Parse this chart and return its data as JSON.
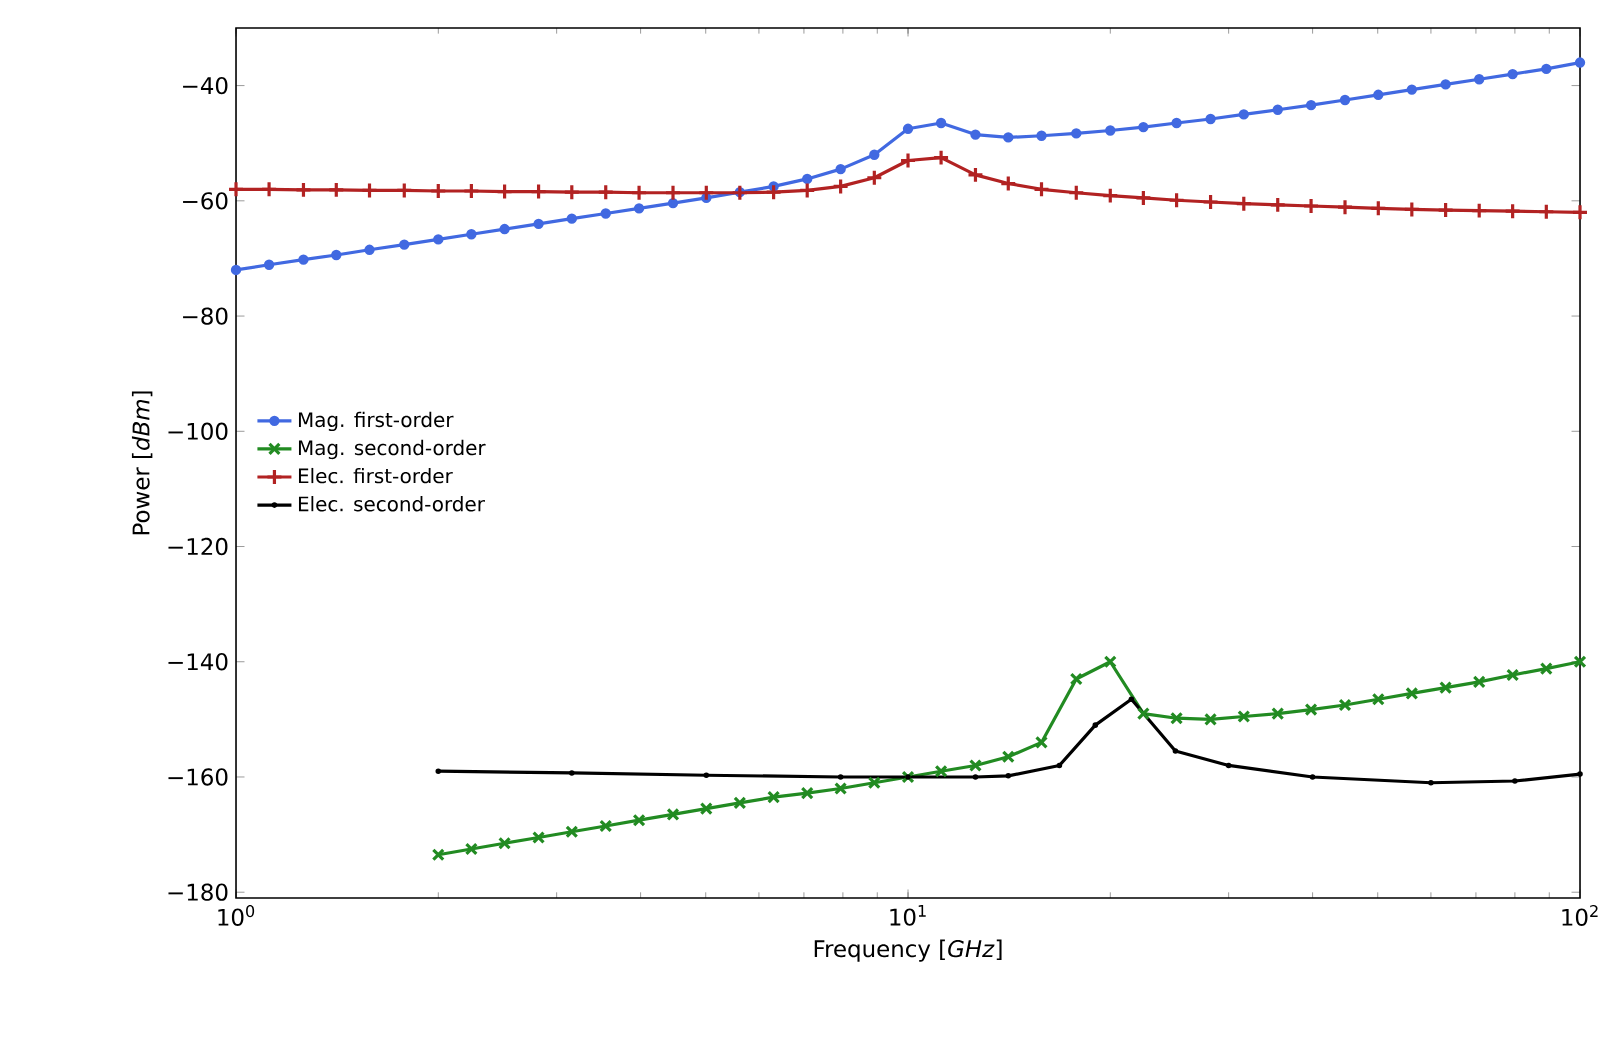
{
  "chart_data": {
    "type": "line",
    "xlabel": "Frequency [*GHz*]",
    "ylabel": "Power [*dBm*]",
    "log": "x",
    "grid": false,
    "legend": "left",
    "xlim": [
      1,
      100
    ],
    "ylim": [
      -181,
      -30
    ],
    "xticks": [
      {
        "value": 1,
        "label": "10$^{0}$"
      },
      {
        "value": 10,
        "label": "10$^{1}$"
      },
      {
        "value": 100,
        "label": "10$^{2}$"
      }
    ],
    "yticks": [
      {
        "value": -180,
        "label": "−180"
      },
      {
        "value": -160,
        "label": "−160"
      },
      {
        "value": -140,
        "label": "−140"
      },
      {
        "value": -120,
        "label": "−120"
      },
      {
        "value": -100,
        "label": "−100"
      },
      {
        "value": -80,
        "label": "−80"
      },
      {
        "value": -60,
        "label": "−60"
      },
      {
        "value": -40,
        "label": "−40"
      }
    ],
    "x": [
      1,
      1.12,
      1.26,
      1.41,
      1.58,
      1.78,
      2,
      2.24,
      2.51,
      2.82,
      3.16,
      3.55,
      3.98,
      4.47,
      5.01,
      5.62,
      6.31,
      7.08,
      7.94,
      8.91,
      10,
      11.2,
      12.6,
      14.1,
      15.8,
      17.8,
      20,
      22.4,
      25.1,
      28.2,
      31.6,
      35.5,
      39.8,
      44.7,
      50.1,
      56.2,
      63.1,
      70.8,
      79.4,
      89.1,
      100
    ],
    "series": [
      {
        "name": "Mag. first-order",
        "color": "#4169e1",
        "marker": "circle",
        "values": [
          -72,
          -71.1,
          -70.2,
          -69.4,
          -68.5,
          -67.6,
          -66.7,
          -65.8,
          -64.9,
          -64,
          -63.1,
          -62.2,
          -61.3,
          -60.4,
          -59.5,
          -58.5,
          -57.5,
          -56.2,
          -54.5,
          -52,
          -47.5,
          -46.5,
          -48.5,
          -49,
          -48.7,
          -48.3,
          -47.8,
          -47.2,
          -46.5,
          -45.8,
          -45,
          -44.2,
          -43.4,
          -42.5,
          -41.6,
          -40.7,
          -39.8,
          -38.9,
          -38,
          -37.1,
          -36
        ]
      },
      {
        "name": "Mag. second-order",
        "color": "#228b22",
        "marker": "cross",
        "x": [
          2,
          2.24,
          2.51,
          2.82,
          3.16,
          3.55,
          3.98,
          4.47,
          5.01,
          5.62,
          6.31,
          7.08,
          7.94,
          8.91,
          10,
          11.2,
          12.6,
          14.1,
          15.8,
          17.8,
          20,
          22.4,
          25.1,
          28.2,
          31.6,
          35.5,
          39.8,
          44.7,
          50.1,
          56.2,
          63.1,
          70.8,
          79.4,
          89.1,
          100
        ],
        "values": [
          -173.5,
          -172.5,
          -171.5,
          -170.5,
          -169.5,
          -168.5,
          -167.5,
          -166.5,
          -165.5,
          -164.5,
          -163.5,
          -162.8,
          -162,
          -161,
          -160,
          -159,
          -158,
          -156.5,
          -154,
          -143,
          -140,
          -149,
          -149.8,
          -150,
          -149.5,
          -149,
          -148.3,
          -147.5,
          -146.5,
          -145.5,
          -144.5,
          -143.5,
          -142.3,
          -141.2,
          -140
        ]
      },
      {
        "name": "Elec. first-order",
        "color": "#b22222",
        "marker": "plus",
        "values": [
          -58,
          -58,
          -58.1,
          -58.1,
          -58.2,
          -58.2,
          -58.3,
          -58.3,
          -58.4,
          -58.4,
          -58.5,
          -58.5,
          -58.6,
          -58.6,
          -58.6,
          -58.6,
          -58.5,
          -58.2,
          -57.5,
          -56,
          -53,
          -52.5,
          -55.5,
          -57,
          -58,
          -58.6,
          -59.1,
          -59.5,
          -59.9,
          -60.2,
          -60.5,
          -60.7,
          -60.9,
          -61.1,
          -61.3,
          -61.5,
          -61.6,
          -61.7,
          -61.8,
          -61.9,
          -62
        ]
      },
      {
        "name": "Elec. second-order",
        "color": "#000000",
        "marker": "point",
        "x": [
          2,
          3.16,
          5.01,
          7.94,
          10,
          12.6,
          14.1,
          16.8,
          19,
          21.5,
          25,
          30,
          40,
          60,
          80,
          100
        ],
        "values": [
          -159,
          -159.3,
          -159.7,
          -160,
          -160,
          -160,
          -159.8,
          -158,
          -151,
          -146.5,
          -155.5,
          -158,
          -160,
          -161,
          -160.7,
          -159.5
        ]
      }
    ]
  }
}
